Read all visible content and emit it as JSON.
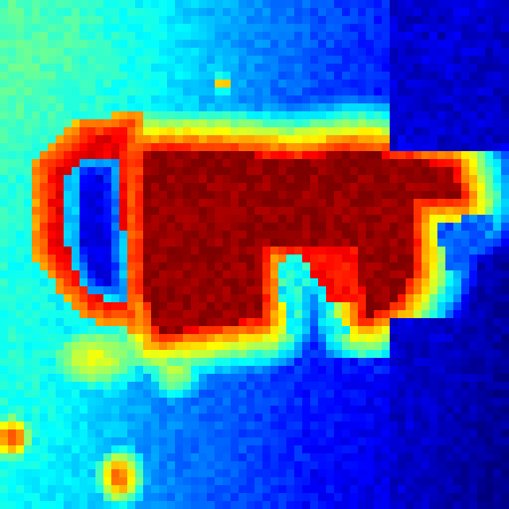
{
  "image": {
    "kind": "saliency-heatmap",
    "colormap": "jet",
    "colormap_stops": [
      "#00007f",
      "#0000ff",
      "#0080ff",
      "#00ffff",
      "#80ff80",
      "#ffff00",
      "#ff8000",
      "#ff0000",
      "#7f0000"
    ]
  }
}
